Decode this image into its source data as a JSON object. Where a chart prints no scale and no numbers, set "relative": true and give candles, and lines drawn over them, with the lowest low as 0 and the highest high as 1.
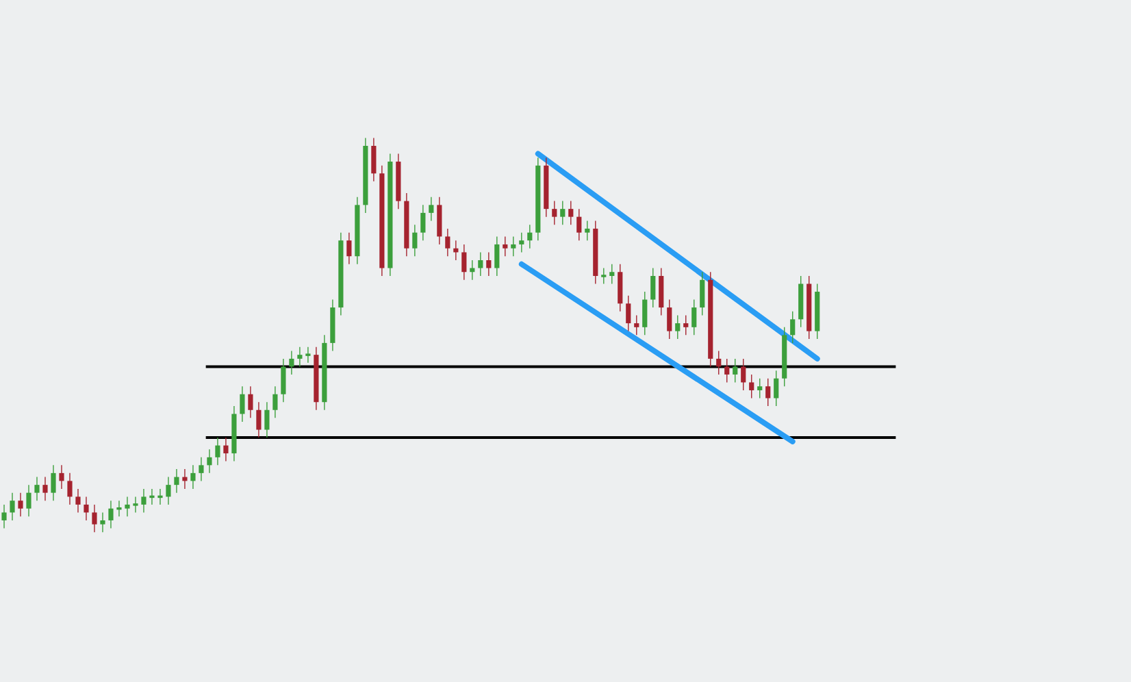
{
  "chart_data": {
    "type": "candlestick",
    "relative": true,
    "colors": [
      "#3c9f3c",
      "#3c9f3c",
      "#a5232f",
      "#3c9f3c",
      "#3c9f3c",
      "#a5232f",
      "#3c9f3c",
      "#a5232f",
      "#a5232f",
      "#a5232f",
      "#a5232f",
      "#a5232f",
      "#3c9f3c",
      "#3c9f3c",
      "#3c9f3c",
      "#3c9f3c",
      "#3c9f3c",
      "#3c9f3c",
      "#3c9f3c",
      "#3c9f3c",
      "#3c9f3c",
      "#3c9f3c",
      "#a5232f",
      "#3c9f3c",
      "#3c9f3c",
      "#3c9f3c",
      "#3c9f3c",
      "#a5232f",
      "#3c9f3c",
      "#3c9f3c",
      "#a5232f",
      "#a5232f",
      "#3c9f3c",
      "#3c9f3c",
      "#3c9f3c",
      "#3c9f3c",
      "#3c9f3c",
      "#3c9f3c",
      "#a5232f",
      "#3c9f3c",
      "#3c9f3c",
      "#3c9f3c",
      "#a5232f",
      "#3c9f3c",
      "#3c9f3c",
      "#a5232f",
      "#a5232f",
      "#3c9f3c",
      "#a5232f",
      "#a5232f",
      "#3c9f3c",
      "#3c9f3c",
      "#3c9f3c",
      "#a5232f",
      "#a5232f",
      "#a5232f",
      "#a5232f",
      "#3c9f3c",
      "#3c9f3c",
      "#a5232f",
      "#3c9f3c",
      "#a5232f",
      "#3c9f3c",
      "#3c9f3c",
      "#3c9f3c",
      "#3c9f3c",
      "#a5232f",
      "#a5232f",
      "#3c9f3c",
      "#a5232f",
      "#a5232f",
      "#3c9f3c",
      "#a5232f",
      "#3c9f3c",
      "#3c9f3c",
      "#a5232f",
      "#a5232f",
      "#a5232f",
      "#3c9f3c",
      "#3c9f3c",
      "#a5232f",
      "#a5232f",
      "#3c9f3c",
      "#a5232f",
      "#3c9f3c",
      "#3c9f3c",
      "#a5232f",
      "#a5232f",
      "#a5232f",
      "#3c9f3c",
      "#a5232f",
      "#a5232f",
      "#3c9f3c",
      "#a5232f",
      "#3c9f3c",
      "#3c9f3c",
      "#3c9f3c",
      "#3c9f3c",
      "#a5232f",
      "#3c9f3c"
    ],
    "categories": [
      null,
      null,
      null,
      null,
      null,
      null,
      null,
      null,
      null,
      null,
      null,
      null,
      null,
      null,
      null,
      null,
      null,
      null,
      null,
      null,
      null,
      null,
      null,
      null,
      null,
      null,
      null,
      null,
      null,
      null,
      null,
      null,
      null,
      null,
      null,
      null,
      null,
      null,
      null,
      null,
      null,
      null,
      null,
      null,
      null,
      null,
      null,
      null,
      null,
      null,
      null,
      null,
      null,
      null,
      null,
      null,
      null,
      null,
      null,
      null,
      null,
      null,
      null,
      null,
      null,
      null,
      null,
      null,
      null,
      null,
      null,
      null,
      null,
      null,
      null,
      null,
      null,
      null,
      null,
      null,
      null,
      null,
      null,
      null,
      null,
      null,
      null,
      null,
      null,
      null,
      null,
      null,
      null,
      null,
      null,
      null,
      null,
      null,
      null,
      null
    ],
    "ref_lines": [
      {
        "axis": "y",
        "value": 0.42,
        "color": "#000000"
      },
      {
        "axis": "y",
        "value": 0.24,
        "color": "#000000"
      }
    ],
    "ohlc": [
      [
        0.03,
        0.07,
        0.01,
        0.05
      ],
      [
        0.05,
        0.1,
        0.03,
        0.08
      ],
      [
        0.08,
        0.1,
        0.04,
        0.06
      ],
      [
        0.06,
        0.12,
        0.04,
        0.1
      ],
      [
        0.1,
        0.14,
        0.08,
        0.12
      ],
      [
        0.12,
        0.14,
        0.08,
        0.1
      ],
      [
        0.1,
        0.17,
        0.08,
        0.15
      ],
      [
        0.15,
        0.17,
        0.11,
        0.13
      ],
      [
        0.13,
        0.15,
        0.07,
        0.09
      ],
      [
        0.09,
        0.11,
        0.05,
        0.07
      ],
      [
        0.07,
        0.09,
        0.03,
        0.05
      ],
      [
        0.05,
        0.07,
        0.0,
        0.02
      ],
      [
        0.02,
        0.05,
        0.0,
        0.03
      ],
      [
        0.03,
        0.08,
        0.01,
        0.06
      ],
      [
        0.06,
        0.08,
        0.04,
        0.06
      ],
      [
        0.06,
        0.09,
        0.04,
        0.07
      ],
      [
        0.07,
        0.09,
        0.05,
        0.07
      ],
      [
        0.07,
        0.11,
        0.05,
        0.09
      ],
      [
        0.09,
        0.11,
        0.07,
        0.09
      ],
      [
        0.09,
        0.11,
        0.07,
        0.09
      ],
      [
        0.09,
        0.14,
        0.07,
        0.12
      ],
      [
        0.12,
        0.16,
        0.1,
        0.14
      ],
      [
        0.14,
        0.16,
        0.11,
        0.13
      ],
      [
        0.13,
        0.17,
        0.11,
        0.15
      ],
      [
        0.15,
        0.19,
        0.13,
        0.17
      ],
      [
        0.17,
        0.21,
        0.15,
        0.19
      ],
      [
        0.19,
        0.24,
        0.17,
        0.22
      ],
      [
        0.22,
        0.24,
        0.18,
        0.2
      ],
      [
        0.2,
        0.32,
        0.18,
        0.3
      ],
      [
        0.3,
        0.37,
        0.28,
        0.35
      ],
      [
        0.35,
        0.37,
        0.29,
        0.31
      ],
      [
        0.31,
        0.33,
        0.24,
        0.26
      ],
      [
        0.26,
        0.33,
        0.24,
        0.31
      ],
      [
        0.31,
        0.37,
        0.29,
        0.35
      ],
      [
        0.35,
        0.44,
        0.33,
        0.42
      ],
      [
        0.42,
        0.46,
        0.4,
        0.44
      ],
      [
        0.44,
        0.47,
        0.42,
        0.45
      ],
      [
        0.45,
        0.47,
        0.43,
        0.45
      ],
      [
        0.45,
        0.47,
        0.31,
        0.33
      ],
      [
        0.33,
        0.5,
        0.31,
        0.48
      ],
      [
        0.48,
        0.59,
        0.46,
        0.57
      ],
      [
        0.57,
        0.76,
        0.55,
        0.74
      ],
      [
        0.74,
        0.76,
        0.68,
        0.7
      ],
      [
        0.7,
        0.85,
        0.68,
        0.83
      ],
      [
        0.83,
        1.0,
        0.81,
        0.98
      ],
      [
        0.98,
        1.0,
        0.89,
        0.91
      ],
      [
        0.91,
        0.93,
        0.65,
        0.67
      ],
      [
        0.67,
        0.96,
        0.65,
        0.94
      ],
      [
        0.94,
        0.96,
        0.82,
        0.84
      ],
      [
        0.84,
        0.86,
        0.7,
        0.72
      ],
      [
        0.72,
        0.78,
        0.7,
        0.76
      ],
      [
        0.76,
        0.83,
        0.74,
        0.81
      ],
      [
        0.81,
        0.85,
        0.79,
        0.83
      ],
      [
        0.83,
        0.85,
        0.73,
        0.75
      ],
      [
        0.75,
        0.77,
        0.7,
        0.72
      ],
      [
        0.72,
        0.74,
        0.69,
        0.71
      ],
      [
        0.71,
        0.73,
        0.64,
        0.66
      ],
      [
        0.66,
        0.69,
        0.64,
        0.67
      ],
      [
        0.67,
        0.71,
        0.65,
        0.69
      ],
      [
        0.69,
        0.71,
        0.65,
        0.67
      ],
      [
        0.67,
        0.75,
        0.65,
        0.73
      ],
      [
        0.73,
        0.75,
        0.7,
        0.72
      ],
      [
        0.72,
        0.75,
        0.7,
        0.73
      ],
      [
        0.73,
        0.76,
        0.71,
        0.74
      ],
      [
        0.74,
        0.78,
        0.72,
        0.76
      ],
      [
        0.76,
        0.95,
        0.74,
        0.93
      ],
      [
        0.93,
        0.95,
        0.8,
        0.82
      ],
      [
        0.82,
        0.84,
        0.78,
        0.8
      ],
      [
        0.8,
        0.84,
        0.78,
        0.82
      ],
      [
        0.82,
        0.84,
        0.78,
        0.8
      ],
      [
        0.8,
        0.82,
        0.74,
        0.76
      ],
      [
        0.76,
        0.79,
        0.74,
        0.77
      ],
      [
        0.77,
        0.79,
        0.63,
        0.65
      ],
      [
        0.65,
        0.67,
        0.63,
        0.65
      ],
      [
        0.65,
        0.68,
        0.63,
        0.66
      ],
      [
        0.66,
        0.68,
        0.56,
        0.58
      ],
      [
        0.58,
        0.6,
        0.51,
        0.53
      ],
      [
        0.53,
        0.55,
        0.5,
        0.52
      ],
      [
        0.52,
        0.61,
        0.5,
        0.59
      ],
      [
        0.59,
        0.67,
        0.57,
        0.65
      ],
      [
        0.65,
        0.67,
        0.55,
        0.57
      ],
      [
        0.57,
        0.59,
        0.49,
        0.51
      ],
      [
        0.51,
        0.55,
        0.49,
        0.53
      ],
      [
        0.53,
        0.55,
        0.5,
        0.52
      ],
      [
        0.52,
        0.59,
        0.5,
        0.57
      ],
      [
        0.57,
        0.66,
        0.55,
        0.64
      ],
      [
        0.64,
        0.66,
        0.42,
        0.44
      ],
      [
        0.44,
        0.46,
        0.4,
        0.42
      ],
      [
        0.42,
        0.44,
        0.38,
        0.4
      ],
      [
        0.4,
        0.44,
        0.38,
        0.42
      ],
      [
        0.42,
        0.44,
        0.36,
        0.38
      ],
      [
        0.38,
        0.4,
        0.34,
        0.36
      ],
      [
        0.36,
        0.39,
        0.34,
        0.37
      ],
      [
        0.37,
        0.39,
        0.32,
        0.34
      ],
      [
        0.34,
        0.41,
        0.32,
        0.39
      ],
      [
        0.39,
        0.52,
        0.37,
        0.5
      ],
      [
        0.5,
        0.56,
        0.48,
        0.54
      ],
      [
        0.54,
        0.65,
        0.52,
        0.63
      ],
      [
        0.63,
        0.65,
        0.49,
        0.51
      ],
      [
        0.51,
        0.63,
        0.49,
        0.61
      ]
    ],
    "series": [
      {
        "type": "line",
        "color": "#2a9df4",
        "values": [
          null,
          null,
          null,
          null,
          null,
          null,
          null,
          null,
          null,
          null,
          null,
          null,
          null,
          null,
          null,
          null,
          null,
          null,
          null,
          null,
          null,
          null,
          null,
          null,
          null,
          null,
          null,
          null,
          null,
          null,
          null,
          null,
          null,
          null,
          null,
          null,
          null,
          null,
          null,
          null,
          null,
          null,
          null,
          null,
          null,
          null,
          null,
          null,
          null,
          null,
          null,
          null,
          null,
          null,
          null,
          null,
          null,
          null,
          null,
          null,
          null,
          null,
          null,
          null,
          null,
          0.96,
          null,
          null,
          null,
          null,
          null,
          null,
          null,
          null,
          null,
          null,
          null,
          null,
          null,
          null,
          null,
          null,
          null,
          null,
          null,
          null,
          null,
          null,
          null,
          null,
          null,
          null,
          null,
          null,
          null,
          null,
          null,
          null,
          null,
          0.44
        ]
      },
      {
        "type": "line",
        "color": "#2a9df4",
        "values": [
          null,
          null,
          null,
          null,
          null,
          null,
          null,
          null,
          null,
          null,
          null,
          null,
          null,
          null,
          null,
          null,
          null,
          null,
          null,
          null,
          null,
          null,
          null,
          null,
          null,
          null,
          null,
          null,
          null,
          null,
          null,
          null,
          null,
          null,
          null,
          null,
          null,
          null,
          null,
          null,
          null,
          null,
          null,
          null,
          null,
          null,
          null,
          null,
          null,
          null,
          null,
          null,
          null,
          null,
          null,
          null,
          null,
          null,
          null,
          null,
          null,
          null,
          null,
          0.68,
          null,
          null,
          null,
          null,
          null,
          null,
          null,
          null,
          null,
          null,
          null,
          null,
          null,
          null,
          null,
          null,
          null,
          null,
          null,
          null,
          null,
          null,
          null,
          null,
          null,
          null,
          null,
          null,
          null,
          null,
          null,
          null,
          0.23,
          null,
          null,
          null
        ]
      }
    ]
  }
}
